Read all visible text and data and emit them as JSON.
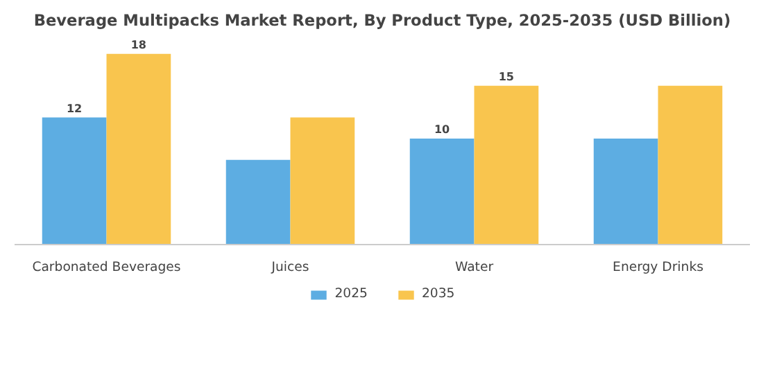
{
  "chart_data": {
    "type": "bar",
    "title": "Beverage Multipacks Market Report, By Product Type, 2025-2035 (USD Billion)",
    "categories": [
      "Carbonated Beverages",
      "Juices",
      "Water",
      "Energy Drinks"
    ],
    "series": [
      {
        "name": "2025",
        "color": "#5dade2",
        "values": [
          12,
          8,
          10,
          10
        ],
        "value_labels": [
          "12",
          null,
          "10",
          null
        ]
      },
      {
        "name": "2035",
        "color": "#f9c54e",
        "values": [
          18,
          12,
          15,
          15
        ],
        "value_labels": [
          "18",
          null,
          "15",
          null
        ]
      }
    ],
    "tick_labels": "x",
    "grid": false,
    "legend": "bottom"
  }
}
